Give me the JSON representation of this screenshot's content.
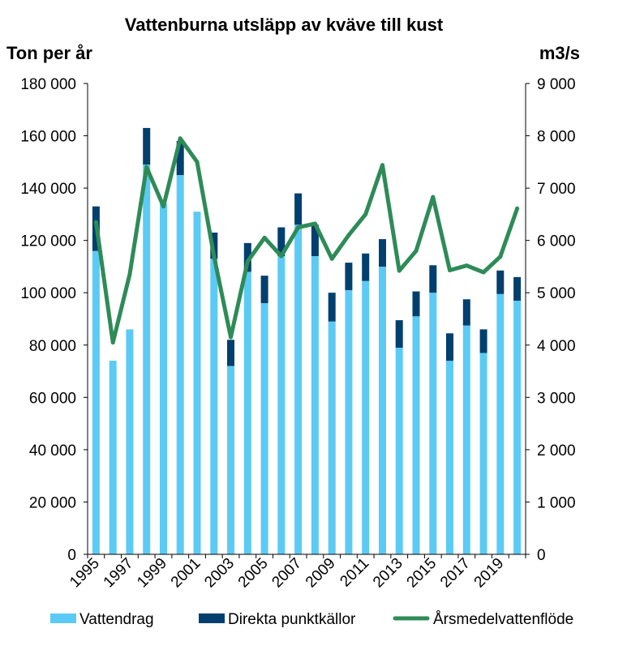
{
  "chart_data": {
    "type": "bar",
    "title": "Vattenburna utsläpp av kväve till kust",
    "ylabel_left": "Ton per år",
    "ylabel_right": "m3/s",
    "ylim_left": [
      0,
      180000
    ],
    "ylim_right": [
      0,
      9000
    ],
    "y_ticks_left": [
      "0",
      "20 000",
      "40 000",
      "60 000",
      "80 000",
      "100 000",
      "120 000",
      "140 000",
      "160 000",
      "180 000"
    ],
    "y_ticks_right": [
      "0",
      "1 000",
      "2 000",
      "3 000",
      "4 000",
      "5 000",
      "6 000",
      "7 000",
      "8 000",
      "9 000"
    ],
    "categories": [
      "1995",
      "1996",
      "1997",
      "1998",
      "1999",
      "2000",
      "2001",
      "2002",
      "2003",
      "2004",
      "2005",
      "2006",
      "2007",
      "2008",
      "2009",
      "2010",
      "2011",
      "2012",
      "2013",
      "2014",
      "2015",
      "2016",
      "2017",
      "2018",
      "2019",
      "2020"
    ],
    "x_tick_labels": [
      "1995",
      "1997",
      "1999",
      "2001",
      "2003",
      "2005",
      "2007",
      "2009",
      "2011",
      "2013",
      "2015",
      "2017",
      "2019"
    ],
    "grid": false,
    "legend_position": "bottom",
    "series": [
      {
        "name": "Vattendrag",
        "kind": "bar-stacked",
        "axis": "left",
        "color": "#5bcbf5",
        "values": [
          116000,
          74000,
          86000,
          149000,
          134000,
          145000,
          131000,
          113000,
          72000,
          108000,
          96000,
          114000,
          126000,
          114000,
          89000,
          101000,
          104500,
          110000,
          79000,
          91000,
          100000,
          74000,
          87500,
          77000,
          99500,
          97000
        ]
      },
      {
        "name": "Direkta punktkällor",
        "kind": "bar-stacked",
        "axis": "left",
        "color": "#003f6e",
        "values": [
          17000,
          0,
          0,
          14000,
          0,
          13000,
          0,
          10000,
          10000,
          11000,
          10500,
          11000,
          12000,
          12000,
          11000,
          10500,
          10500,
          10500,
          10500,
          9500,
          10500,
          10500,
          10000,
          9000,
          9000,
          9000
        ]
      },
      {
        "name": "Årsmedelvattenflöde",
        "kind": "line",
        "axis": "right",
        "color": "#2e8b57",
        "values": [
          6350,
          4050,
          5350,
          7400,
          6650,
          7950,
          7500,
          5700,
          4150,
          5600,
          6050,
          5700,
          6250,
          6320,
          5650,
          6100,
          6500,
          7440,
          5420,
          5800,
          6830,
          5430,
          5520,
          5390,
          5690,
          6610
        ]
      }
    ]
  }
}
